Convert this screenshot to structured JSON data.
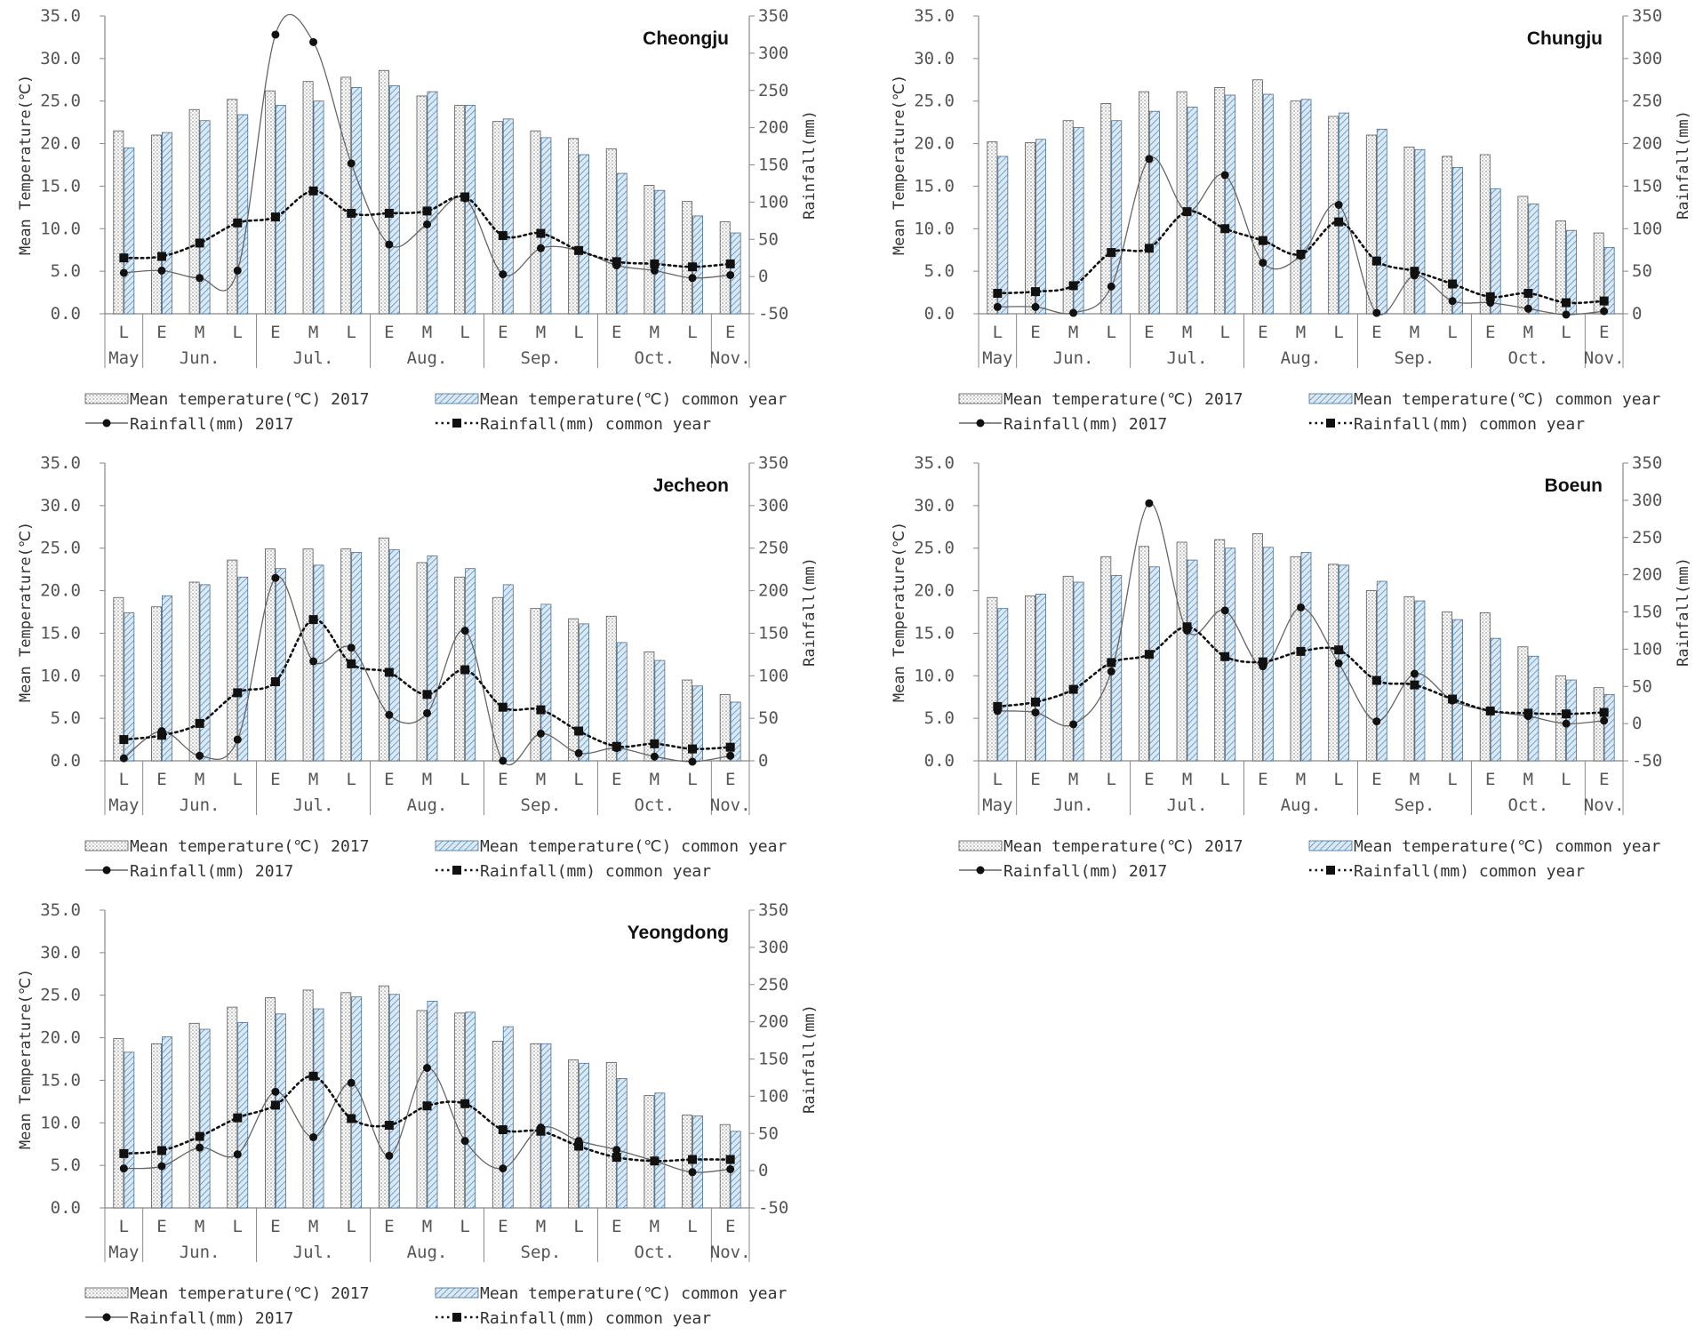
{
  "legend": {
    "temp_2017": "Mean temperature(℃) 2017",
    "temp_common": "Mean temperature(℃) common year",
    "rain_2017": "Rainfall(mm) 2017",
    "rain_common": "Rainfall(mm) common year"
  },
  "axes": {
    "left_label": "Mean Temperature(℃)",
    "right_label": "Rainfall(mm)",
    "left_ticks": [
      "0.0",
      "5.0",
      "10.0",
      "15.0",
      "20.0",
      "25.0",
      "30.0",
      "35.0"
    ],
    "right_ticks": [
      "-50",
      "0",
      "50",
      "100",
      "150",
      "200",
      "250",
      "300",
      "350"
    ]
  },
  "periods": [
    "L",
    "E",
    "M",
    "L",
    "E",
    "M",
    "L",
    "E",
    "M",
    "L",
    "E",
    "M",
    "L",
    "E",
    "M",
    "L",
    "E"
  ],
  "months": [
    {
      "label": "May",
      "start": 0,
      "end": 0
    },
    {
      "label": "Jun.",
      "start": 1,
      "end": 3
    },
    {
      "label": "Jul.",
      "start": 4,
      "end": 6
    },
    {
      "label": "Aug.",
      "start": 7,
      "end": 9
    },
    {
      "label": "Sep.",
      "start": 10,
      "end": 12
    },
    {
      "label": "Oct.",
      "start": 13,
      "end": 15
    },
    {
      "label": "Nov.",
      "start": 16,
      "end": 16
    }
  ],
  "chart_data": [
    {
      "type": "bar",
      "title": "Cheongju",
      "ylim_left": [
        0,
        35
      ],
      "ylim_right": [
        -50,
        350
      ],
      "series": [
        {
          "name": "Mean temperature(℃) 2017",
          "kind": "bar",
          "axis": "left",
          "values": [
            21.5,
            21.0,
            24.0,
            25.2,
            26.2,
            27.3,
            27.8,
            28.6,
            25.6,
            24.5,
            22.6,
            21.5,
            20.6,
            19.4,
            15.1,
            13.2,
            10.8
          ]
        },
        {
          "name": "Mean temperature(℃) common year",
          "kind": "bar",
          "axis": "left",
          "values": [
            19.5,
            21.3,
            22.7,
            23.4,
            24.5,
            25.0,
            26.6,
            26.8,
            26.1,
            24.5,
            22.9,
            20.7,
            18.7,
            16.5,
            14.5,
            11.5,
            9.5
          ]
        },
        {
          "name": "Rainfall(mm) 2017",
          "kind": "line",
          "axis": "right",
          "values": [
            5,
            8,
            -2,
            8,
            325,
            315,
            152,
            43,
            70,
            105,
            3,
            38,
            35,
            15,
            8,
            -2,
            2
          ]
        },
        {
          "name": "Rainfall(mm) common year",
          "kind": "line",
          "axis": "right",
          "values": [
            25,
            27,
            45,
            72,
            80,
            115,
            85,
            85,
            88,
            107,
            55,
            58,
            35,
            20,
            17,
            13,
            17
          ]
        }
      ]
    },
    {
      "type": "bar",
      "title": "Chungju",
      "ylim_left": [
        0,
        35
      ],
      "ylim_right": [
        0,
        350
      ],
      "series": [
        {
          "name": "Mean temperature(℃) 2017",
          "kind": "bar",
          "axis": "left",
          "values": [
            20.2,
            20.1,
            22.7,
            24.7,
            26.1,
            26.1,
            26.6,
            27.5,
            25.0,
            23.2,
            21.0,
            19.6,
            18.5,
            18.7,
            13.8,
            10.9,
            9.5
          ]
        },
        {
          "name": "Mean temperature(℃) common year",
          "kind": "bar",
          "axis": "left",
          "values": [
            18.5,
            20.5,
            21.9,
            22.7,
            23.8,
            24.3,
            25.7,
            25.8,
            25.2,
            23.6,
            21.7,
            19.3,
            17.2,
            14.7,
            12.9,
            9.8,
            7.8
          ]
        },
        {
          "name": "Rainfall(mm) 2017",
          "kind": "line",
          "axis": "right",
          "values": [
            8,
            8,
            1,
            32,
            182,
            120,
            163,
            60,
            68,
            128,
            1,
            45,
            15,
            13,
            6,
            -1,
            3
          ]
        },
        {
          "name": "Rainfall(mm) common year",
          "kind": "line",
          "axis": "right",
          "values": [
            24,
            26,
            33,
            72,
            77,
            120,
            100,
            86,
            70,
            108,
            62,
            50,
            35,
            20,
            24,
            13,
            15
          ]
        }
      ]
    },
    {
      "type": "bar",
      "title": "Jecheon",
      "ylim_left": [
        0,
        35
      ],
      "ylim_right": [
        0,
        350
      ],
      "series": [
        {
          "name": "Mean temperature(℃) 2017",
          "kind": "bar",
          "axis": "left",
          "values": [
            19.2,
            18.1,
            21.0,
            23.6,
            24.9,
            24.9,
            24.9,
            26.2,
            23.3,
            21.6,
            19.2,
            17.9,
            16.7,
            17.0,
            12.8,
            9.5,
            7.8
          ]
        },
        {
          "name": "Mean temperature(℃) common year",
          "kind": "bar",
          "axis": "left",
          "values": [
            17.4,
            19.4,
            20.7,
            21.6,
            22.6,
            23.0,
            24.5,
            24.8,
            24.1,
            22.6,
            20.7,
            18.4,
            16.1,
            13.9,
            11.8,
            8.8,
            6.9
          ]
        },
        {
          "name": "Rainfall(mm) 2017",
          "kind": "line",
          "axis": "right",
          "values": [
            3,
            35,
            6,
            25,
            215,
            117,
            133,
            54,
            56,
            153,
            0,
            32,
            9,
            15,
            5,
            -1,
            6
          ]
        },
        {
          "name": "Rainfall(mm) common year",
          "kind": "line",
          "axis": "right",
          "values": [
            25,
            30,
            44,
            80,
            93,
            166,
            114,
            104,
            78,
            107,
            63,
            60,
            35,
            17,
            20,
            14,
            16
          ]
        }
      ]
    },
    {
      "type": "bar",
      "title": "Boeun",
      "ylim_left": [
        0,
        35
      ],
      "ylim_right": [
        -50,
        350
      ],
      "series": [
        {
          "name": "Mean temperature(℃) 2017",
          "kind": "bar",
          "axis": "left",
          "values": [
            19.2,
            19.4,
            21.7,
            24.0,
            25.2,
            25.7,
            26.0,
            26.7,
            24.0,
            23.1,
            20.0,
            19.3,
            17.5,
            17.4,
            13.4,
            10.0,
            8.6
          ]
        },
        {
          "name": "Mean temperature(℃) common year",
          "kind": "bar",
          "axis": "left",
          "values": [
            17.9,
            19.6,
            21.0,
            21.8,
            22.8,
            23.6,
            25.0,
            25.1,
            24.5,
            23.0,
            21.1,
            18.8,
            16.6,
            14.4,
            12.3,
            9.5,
            7.8
          ]
        },
        {
          "name": "Rainfall(mm) 2017",
          "kind": "line",
          "axis": "right",
          "values": [
            17,
            15,
            -1,
            70,
            296,
            125,
            152,
            77,
            156,
            81,
            3,
            67,
            31,
            17,
            10,
            0,
            4
          ]
        },
        {
          "name": "Rainfall(mm) common year",
          "kind": "line",
          "axis": "right",
          "values": [
            23,
            29,
            46,
            82,
            93,
            130,
            90,
            83,
            97,
            99,
            58,
            52,
            33,
            17,
            14,
            13,
            15
          ]
        }
      ]
    },
    {
      "type": "bar",
      "title": "Yeongdong",
      "ylim_left": [
        0,
        35
      ],
      "ylim_right": [
        -50,
        350
      ],
      "series": [
        {
          "name": "Mean temperature(℃) 2017",
          "kind": "bar",
          "axis": "left",
          "values": [
            19.9,
            19.3,
            21.7,
            23.6,
            24.7,
            25.6,
            25.3,
            26.1,
            23.2,
            22.9,
            19.6,
            19.3,
            17.4,
            17.1,
            13.2,
            10.9,
            9.8
          ]
        },
        {
          "name": "Mean temperature(℃) common year",
          "kind": "bar",
          "axis": "left",
          "values": [
            18.3,
            20.1,
            21.0,
            21.8,
            22.8,
            23.4,
            24.8,
            25.1,
            24.3,
            23.0,
            21.3,
            19.3,
            17.0,
            15.2,
            13.5,
            10.8,
            9.0
          ]
        },
        {
          "name": "Rainfall(mm) 2017",
          "kind": "line",
          "axis": "right",
          "values": [
            3,
            6,
            31,
            22,
            106,
            45,
            118,
            20,
            138,
            40,
            3,
            58,
            40,
            28,
            13,
            -2,
            2
          ]
        },
        {
          "name": "Rainfall(mm) common year",
          "kind": "line",
          "axis": "right",
          "values": [
            23,
            27,
            46,
            71,
            88,
            127,
            70,
            61,
            87,
            90,
            55,
            53,
            33,
            18,
            13,
            15,
            15
          ]
        }
      ]
    }
  ]
}
